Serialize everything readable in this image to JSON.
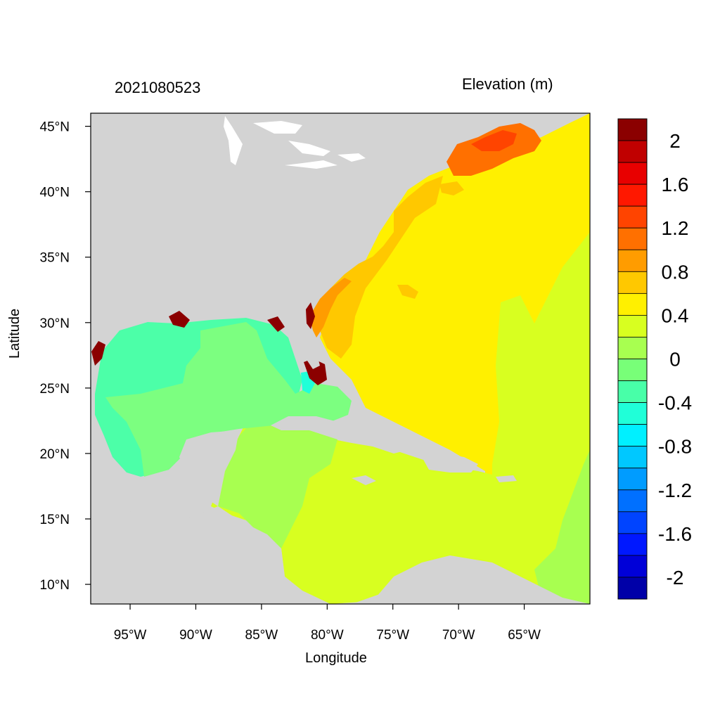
{
  "timestamp": "2021080523",
  "variable_title": "Elevation (m)",
  "axes": {
    "xlabel": "Longitude",
    "ylabel": "Latitude",
    "lon_range": [
      -98,
      -60
    ],
    "lat_range": [
      8.5,
      46
    ],
    "x_ticks": [
      {
        "value": -95,
        "label": "95°W"
      },
      {
        "value": -90,
        "label": "90°W"
      },
      {
        "value": -85,
        "label": "85°W"
      },
      {
        "value": -80,
        "label": "80°W"
      },
      {
        "value": -75,
        "label": "75°W"
      },
      {
        "value": -70,
        "label": "70°W"
      },
      {
        "value": -65,
        "label": "65°W"
      }
    ],
    "y_ticks": [
      {
        "value": 45,
        "label": "45°N"
      },
      {
        "value": 40,
        "label": "40°N"
      },
      {
        "value": 35,
        "label": "35°N"
      },
      {
        "value": 30,
        "label": "30°N"
      },
      {
        "value": 25,
        "label": "25°N"
      },
      {
        "value": 20,
        "label": "20°N"
      },
      {
        "value": 15,
        "label": "15°N"
      },
      {
        "value": 10,
        "label": "10°N"
      }
    ]
  },
  "colorbar": {
    "colors": [
      "#8b0000",
      "#c00000",
      "#e80000",
      "#ff1800",
      "#ff4400",
      "#ff7000",
      "#ff9c00",
      "#ffc800",
      "#fff000",
      "#d8ff20",
      "#a8ff50",
      "#78ff78",
      "#48ffa8",
      "#20ffd8",
      "#00f0ff",
      "#00c8ff",
      "#009cff",
      "#0070ff",
      "#0044ff",
      "#0018ff",
      "#0000d8",
      "#0000a8"
    ],
    "labels": [
      "2",
      "1.6",
      "1.2",
      "0.8",
      "0.4",
      "0",
      "-0.4",
      "-0.8",
      "-1.2",
      "-1.6",
      "-2"
    ]
  },
  "colors": {
    "land": "#d3d3d3",
    "gulf_of_mexico": "#4cffa8",
    "gulf_east": "#7cff80",
    "caribbean": "#d8ff20",
    "atlantic": "#fff000",
    "shelf_orange": "#ffc800",
    "gulf_of_maine": "#ff7000",
    "surge_max": "#8b0000"
  }
}
